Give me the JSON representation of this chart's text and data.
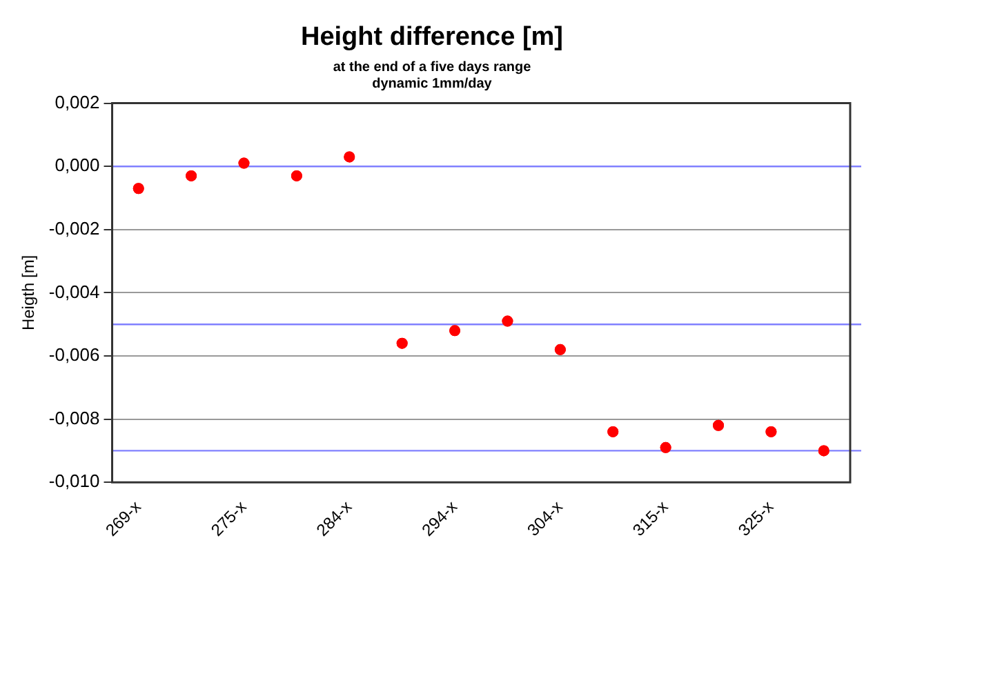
{
  "chart_data": {
    "type": "scatter",
    "title": "Height difference [m]",
    "subtitle": "at the end of a five days range\ndynamic 1mm/day",
    "ylabel": "Heigth [m]",
    "categories": [
      "269-x",
      null,
      "275-x",
      null,
      "284-x",
      null,
      "294-x",
      null,
      "304-x",
      null,
      "315-x",
      null,
      "325-x",
      null
    ],
    "series": [
      {
        "color": "#ff0000",
        "values": [
          -0.0007,
          -0.0003,
          0.0001,
          -0.0003,
          0.0003,
          -0.0056,
          -0.0052,
          -0.0049,
          -0.0058,
          -0.0084,
          -0.0089,
          -0.0082,
          -0.0084,
          -0.009
        ]
      }
    ],
    "ylim": [
      -0.01,
      0.002
    ],
    "yticks": [
      {
        "value": -0.01,
        "label": "-0,010"
      },
      {
        "value": -0.008,
        "label": "-0,008"
      },
      {
        "value": -0.006,
        "label": "-0,006"
      },
      {
        "value": -0.004,
        "label": "-0,004"
      },
      {
        "value": -0.002,
        "label": "-0,002"
      },
      {
        "value": 0,
        "label": "0,000"
      },
      {
        "value": 0.002,
        "label": "0,002"
      }
    ],
    "ref_lines": [
      {
        "axis": "y",
        "value": 0,
        "color": "#8080ff"
      },
      {
        "axis": "y",
        "value": -0.005,
        "color": "#8080ff"
      },
      {
        "axis": "y",
        "value": -0.009,
        "color": "#8080ff"
      }
    ],
    "grid": "y",
    "legend": false,
    "marker": "circle"
  }
}
